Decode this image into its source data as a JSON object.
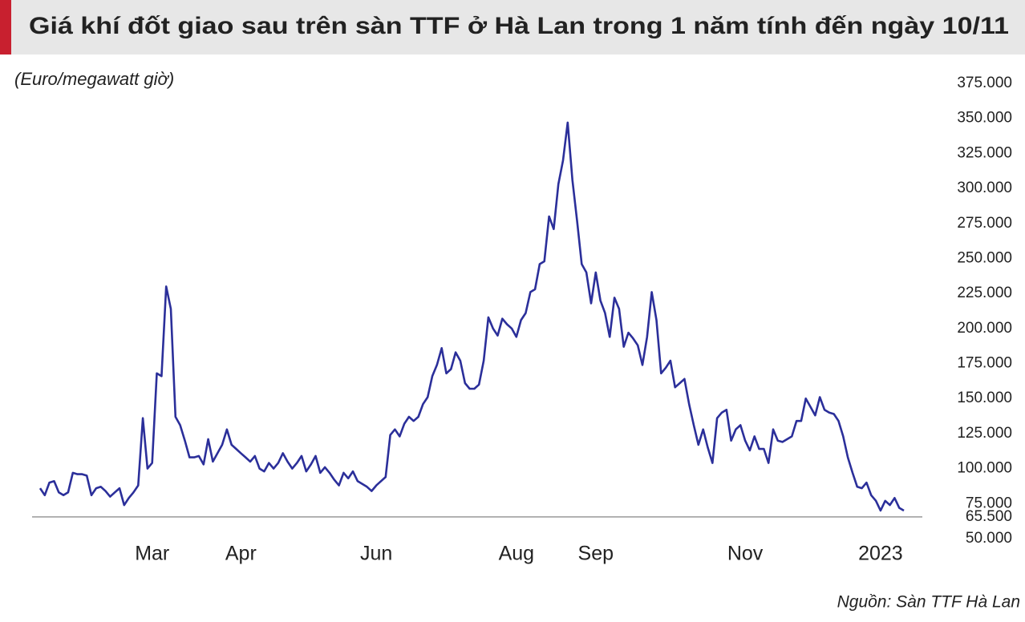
{
  "chart_data": {
    "type": "line",
    "title": "Giá khí đốt giao sau trên sàn TTF ở Hà Lan trong 1 năm tính đến ngày 10/11",
    "y_label": "(Euro/megawatt giờ)",
    "source": "Nguồn: Sàn TTF Hà Lan",
    "categories": [
      null,
      null,
      null,
      null,
      null,
      null,
      null,
      null,
      null,
      null,
      null,
      null,
      null,
      null,
      null,
      null,
      null,
      null,
      null,
      null,
      null,
      null,
      null,
      null,
      "Mar",
      null,
      null,
      null,
      null,
      null,
      null,
      null,
      null,
      null,
      null,
      null,
      null,
      null,
      null,
      null,
      null,
      null,
      null,
      "Apr",
      null,
      null,
      null,
      null,
      null,
      null,
      null,
      null,
      null,
      null,
      null,
      null,
      null,
      null,
      null,
      null,
      null,
      null,
      null,
      null,
      null,
      null,
      null,
      null,
      null,
      null,
      null,
      null,
      "Jun",
      null,
      null,
      null,
      null,
      null,
      null,
      null,
      null,
      null,
      null,
      null,
      null,
      null,
      null,
      null,
      null,
      null,
      null,
      null,
      null,
      null,
      null,
      null,
      null,
      null,
      null,
      null,
      null,
      null,
      "Aug",
      null,
      null,
      null,
      null,
      null,
      null,
      null,
      null,
      null,
      null,
      null,
      null,
      null,
      null,
      null,
      null,
      "Sep",
      null,
      null,
      null,
      null,
      null,
      null,
      null,
      null,
      null,
      null,
      null,
      null,
      null,
      null,
      null,
      null,
      null,
      null,
      null,
      null,
      null,
      null,
      null,
      null,
      null,
      null,
      null,
      null,
      null,
      null,
      null,
      "Nov",
      null,
      null,
      null,
      null,
      null,
      null,
      null,
      null,
      null,
      null,
      null,
      null,
      null,
      null,
      null,
      null,
      null,
      null,
      null,
      null,
      null,
      null,
      null,
      null,
      null,
      null,
      null,
      null,
      "2023",
      null,
      null,
      null,
      null,
      null
    ],
    "series": [
      {
        "name": "TTF",
        "color": "#2b2f9a",
        "values": [
          86,
          81,
          90,
          91,
          83,
          81,
          83,
          97,
          96,
          96,
          95,
          81,
          86,
          87,
          84,
          80,
          83,
          86,
          74,
          79,
          83,
          88,
          136,
          100,
          104,
          168,
          166,
          230,
          214,
          137,
          131,
          120,
          108,
          108,
          109,
          103,
          121,
          105,
          111,
          117,
          128,
          117,
          114,
          111,
          108,
          105,
          109,
          100,
          98,
          104,
          100,
          104,
          111,
          105,
          100,
          104,
          109,
          98,
          103,
          109,
          97,
          101,
          97,
          92,
          88,
          97,
          93,
          98,
          91,
          89,
          87,
          84,
          88,
          91,
          94,
          124,
          128,
          123,
          132,
          137,
          134,
          137,
          146,
          151,
          166,
          174,
          186,
          168,
          171,
          183,
          177,
          161,
          157,
          157,
          160,
          177,
          208,
          200,
          195,
          207,
          203,
          200,
          194,
          206,
          211,
          226,
          228,
          246,
          248,
          280,
          271,
          303,
          320,
          347,
          306,
          277,
          246,
          240,
          218,
          240,
          220,
          211,
          194,
          222,
          214,
          187,
          197,
          193,
          188,
          174,
          194,
          226,
          206,
          168,
          172,
          177,
          158,
          161,
          164,
          146,
          131,
          117,
          128,
          115,
          104,
          136,
          140,
          142,
          120,
          128,
          131,
          120,
          113,
          123,
          114,
          114,
          104,
          128,
          120,
          119,
          121,
          123,
          134,
          134,
          150,
          144,
          138,
          151,
          142,
          140,
          139,
          134,
          123,
          108,
          97,
          87,
          86,
          90,
          81,
          77,
          70,
          77,
          74,
          79,
          72,
          70
        ]
      }
    ],
    "ylim": [
      50,
      375
    ],
    "yticks": [
      {
        "value": 50,
        "label": "50.000"
      },
      {
        "value": 65.5,
        "label": "65.500"
      },
      {
        "value": 75,
        "label": "75.000"
      },
      {
        "value": 100,
        "label": "100.000"
      },
      {
        "value": 125,
        "label": "125.000"
      },
      {
        "value": 150,
        "label": "150.000"
      },
      {
        "value": 175,
        "label": "175.000"
      },
      {
        "value": 200,
        "label": "200.000"
      },
      {
        "value": 225,
        "label": "225.000"
      },
      {
        "value": 250,
        "label": "250.000"
      },
      {
        "value": 275,
        "label": "275.000"
      },
      {
        "value": 300,
        "label": "300.000"
      },
      {
        "value": 325,
        "label": "325.000"
      },
      {
        "value": 350,
        "label": "350.000"
      },
      {
        "value": 375,
        "label": "375.000"
      }
    ],
    "baseline": 65.5,
    "grid": false
  }
}
